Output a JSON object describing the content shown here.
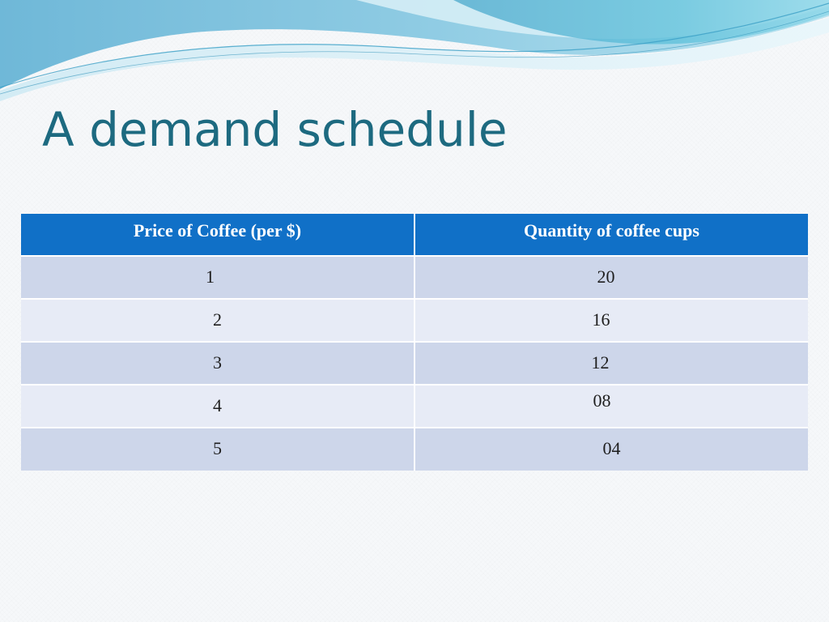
{
  "slide": {
    "title": "A demand schedule"
  },
  "theme": {
    "title_color": "#1d6a80",
    "header_color": "#1070c7",
    "row_odd_color": "#cdd6ea",
    "row_even_color": "#e7ebf6",
    "wave_colors": [
      "#7cc0dc",
      "#4fb3d0",
      "#9fd8ea"
    ]
  },
  "table": {
    "headers": [
      "Price of Coffee (per $)",
      "Quantity of coffee cups"
    ],
    "rows": [
      [
        "1",
        "20"
      ],
      [
        "2",
        "16"
      ],
      [
        "3",
        "12"
      ],
      [
        "4",
        "08"
      ],
      [
        "5",
        "04"
      ]
    ]
  }
}
